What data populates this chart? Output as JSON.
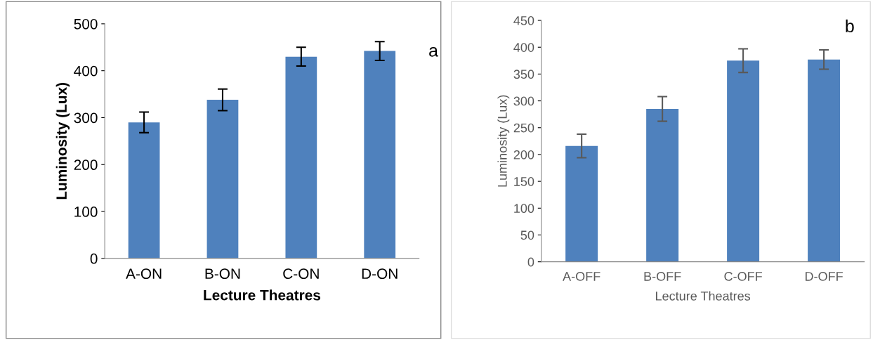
{
  "chart_data": [
    {
      "type": "bar",
      "xlabel": "Lecture Theatres",
      "ylabel": "Luminosity (Lux)",
      "annotations": [
        "a"
      ],
      "categories": [
        "A-ON",
        "B-ON",
        "C-ON",
        "D-ON"
      ],
      "values": [
        290,
        338,
        430,
        442
      ],
      "errors": [
        22,
        23,
        20,
        20
      ],
      "color": "#4f81bd",
      "ylim": [
        0,
        500
      ],
      "yticks": [
        0,
        100,
        200,
        300,
        400,
        500
      ],
      "grid": false
    },
    {
      "type": "bar",
      "xlabel": "Lecture Theatres",
      "ylabel": "Luminosity (Lux)",
      "annotations": [
        "b"
      ],
      "categories": [
        "A-OFF",
        "B-OFF",
        "C-OFF",
        "D-OFF"
      ],
      "values": [
        216,
        285,
        375,
        377
      ],
      "errors": [
        22,
        23,
        22,
        18
      ],
      "color": "#4f81bd",
      "ylim": [
        0,
        450
      ],
      "yticks": [
        0,
        50,
        100,
        150,
        200,
        250,
        300,
        350,
        400,
        450
      ],
      "grid": false
    }
  ]
}
